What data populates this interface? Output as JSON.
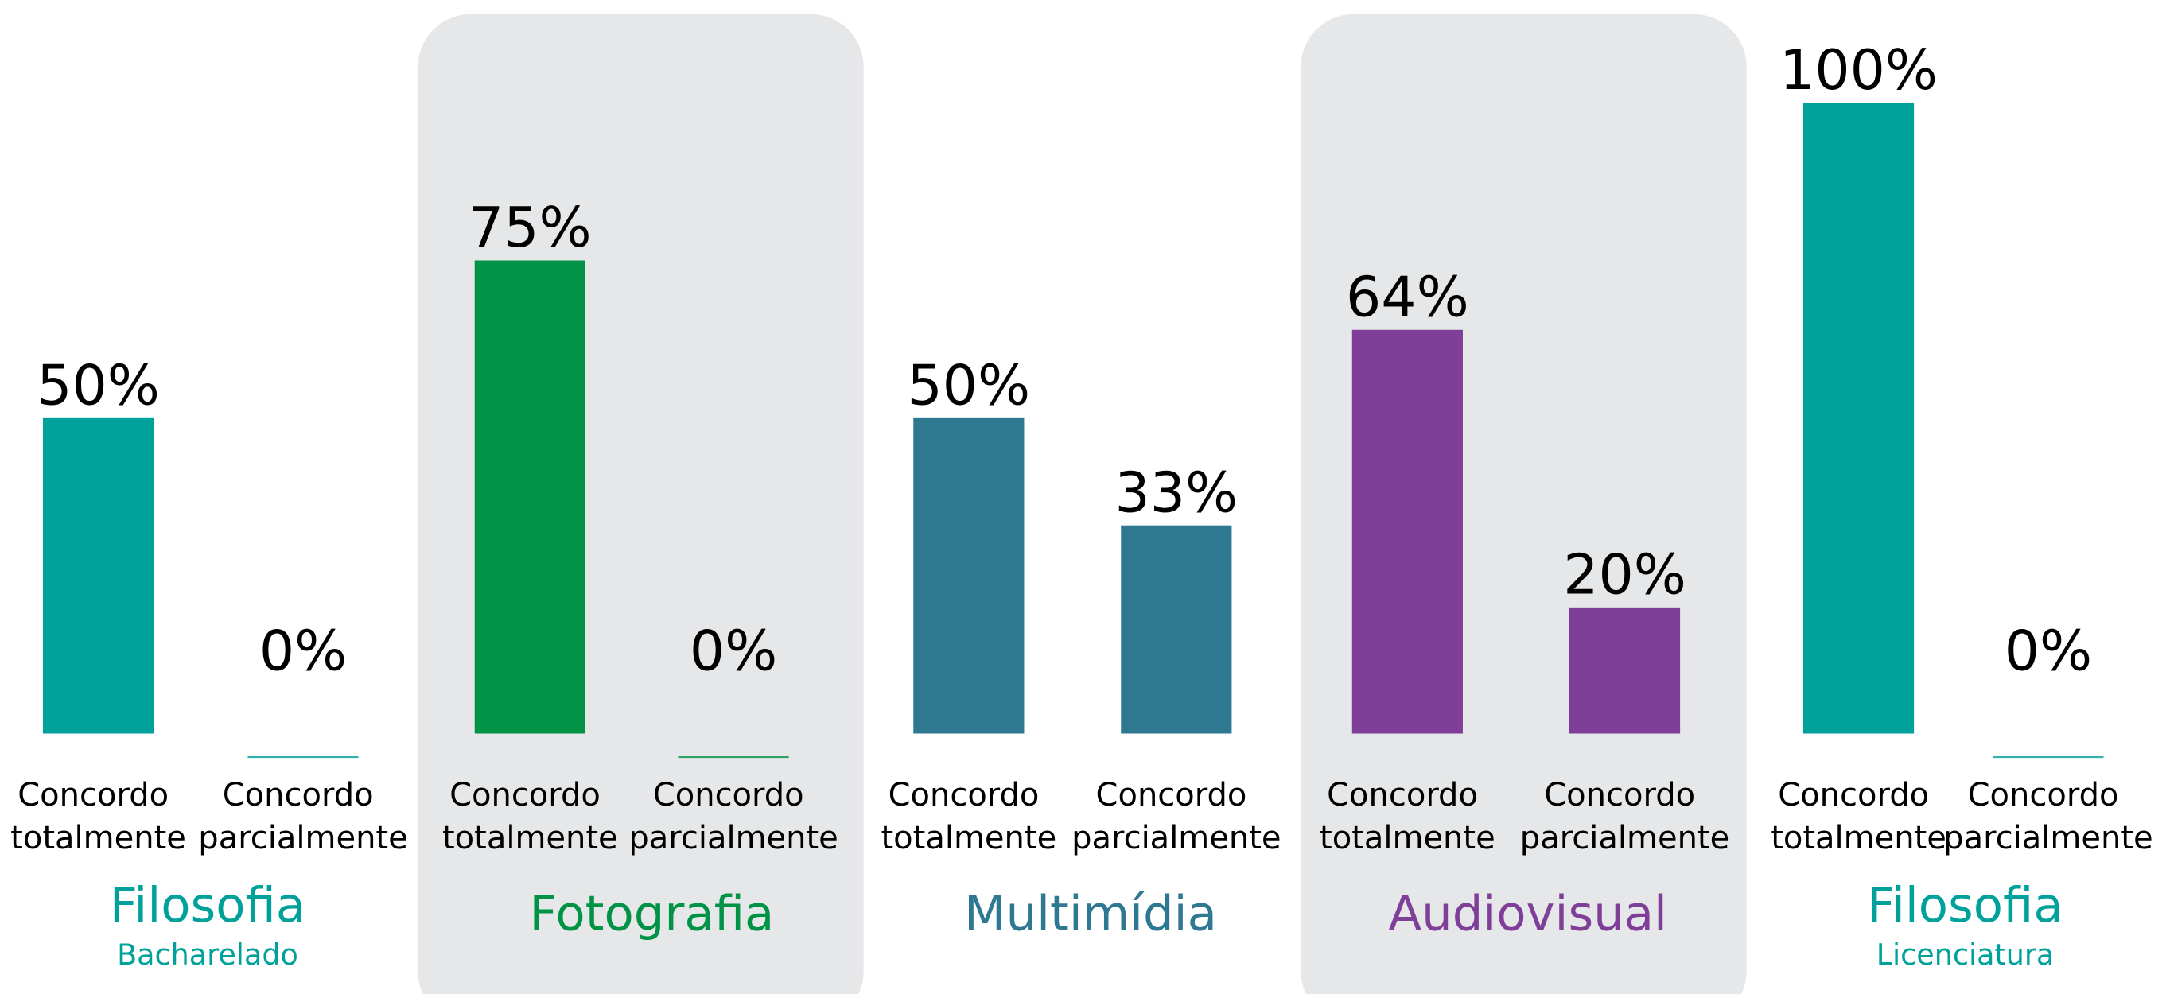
{
  "chart_data": [
    {
      "type": "bar",
      "title": "Filosofia",
      "subtitle": "Bacharelado",
      "color": "#00a19a",
      "categories": [
        "Concordo totalmente",
        "Concordo parcialmente"
      ],
      "values": [
        50,
        0
      ],
      "value_labels": [
        "50%",
        "0%"
      ]
    },
    {
      "type": "bar",
      "title": "Fotografia",
      "color": "#009245",
      "categories": [
        "Concordo totalmente",
        "Concordo parcialmente"
      ],
      "values": [
        75,
        0
      ],
      "value_labels": [
        "75%",
        "0%"
      ]
    },
    {
      "type": "bar",
      "title": "Multimídia",
      "color": "#2e7891",
      "categories": [
        "Concordo totalmente",
        "Concordo parcialmente"
      ],
      "values": [
        50,
        33
      ],
      "value_labels": [
        "50%",
        "33%"
      ]
    },
    {
      "type": "bar",
      "title": "Audiovisual",
      "color": "#7f3f98",
      "categories": [
        "Concordo totalmente",
        "Concordo parcialmente"
      ],
      "values": [
        64,
        20
      ],
      "value_labels": [
        "64%",
        "20%"
      ]
    },
    {
      "type": "bar",
      "title": "Filosofia",
      "subtitle": "Licenciatura",
      "color": "#00a19a",
      "categories": [
        "Concordo totalmente",
        "Concordo parcialmente"
      ],
      "values": [
        100,
        0
      ],
      "value_labels": [
        "100%",
        "0%"
      ]
    }
  ]
}
